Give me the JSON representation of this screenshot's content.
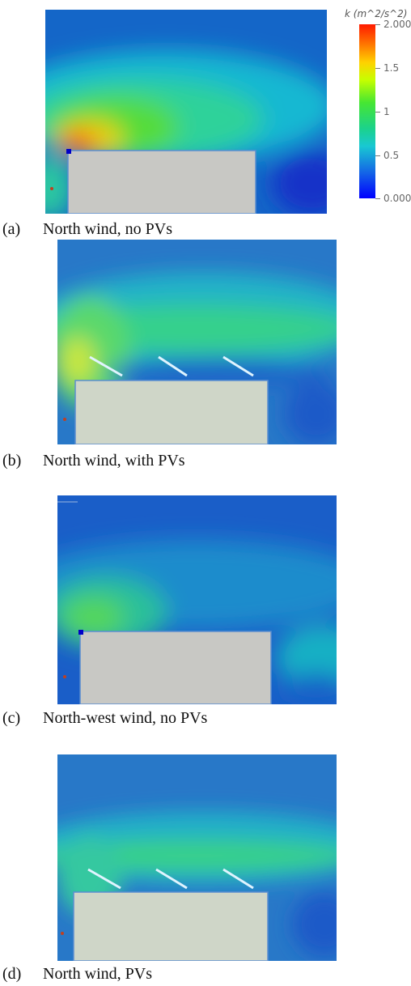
{
  "legend": {
    "title": "k (m^2/s^2)",
    "ticks": [
      "2.000",
      "1.5",
      "1",
      "0.5",
      "0.000"
    ],
    "range": [
      0,
      2
    ]
  },
  "panels": [
    {
      "label": "(a)",
      "caption": "North wind, no PVs"
    },
    {
      "label": "(b)",
      "caption": "North wind, with PVs"
    },
    {
      "label": "(c)",
      "caption": "North-west wind, no PVs"
    },
    {
      "label": "(d)",
      "caption": "North wind, PVs"
    }
  ],
  "colors": {
    "background_blue": "#1565c8",
    "building": "#c8c8c4",
    "building_b": "#cfd6c8",
    "high_turbulence": "#ff3a00"
  }
}
